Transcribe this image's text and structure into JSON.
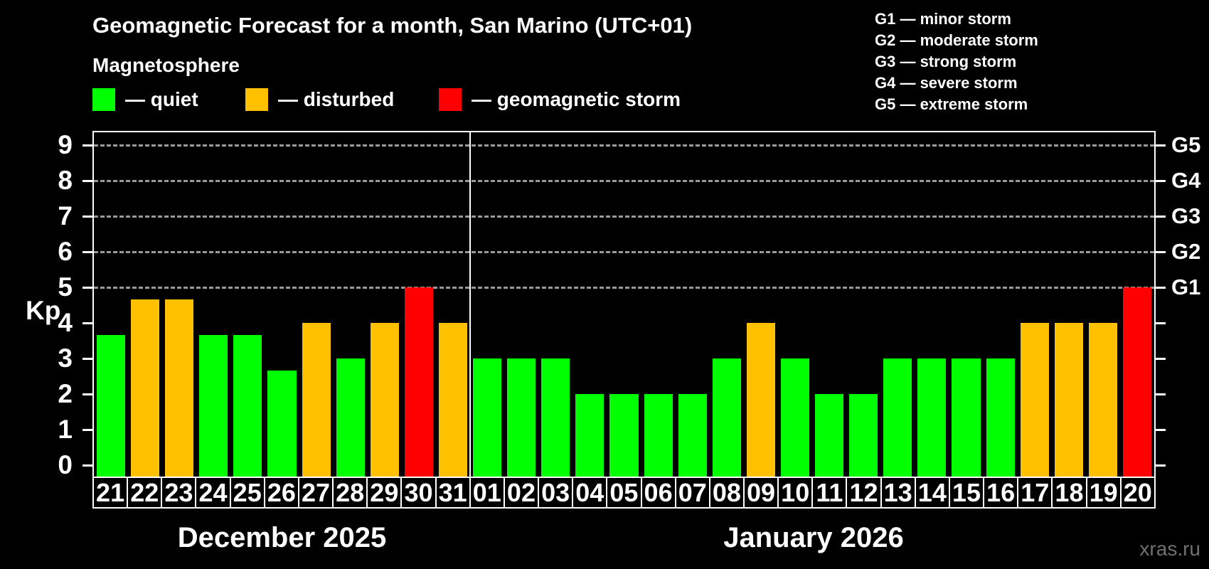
{
  "title": "Geomagnetic Forecast for a month, San Marino (UTC+01)",
  "subtitle": "Magnetosphere",
  "legend": {
    "items": [
      {
        "name": "quiet",
        "label": "— quiet"
      },
      {
        "name": "disturbed",
        "label": "— disturbed"
      },
      {
        "name": "storm",
        "label": "— geomagnetic storm"
      }
    ]
  },
  "storm_scale_legend": [
    "G1 — minor storm",
    "G2 — moderate storm",
    "G3 — strong storm",
    "G4 — severe storm",
    "G5 — extreme storm"
  ],
  "watermark": "xras.ru",
  "colors": {
    "quiet": "#00ff00",
    "disturbed": "#ffc000",
    "storm": "#ff0000",
    "background": "#000000",
    "axis": "#ffffff",
    "grid": "#9a9a9a",
    "watermark": "#707070"
  },
  "chart_data": {
    "type": "bar",
    "title": "Geomagnetic Forecast for a month, San Marino (UTC+01)",
    "ylabel": "Kp",
    "ylim": [
      0,
      9.4
    ],
    "yticks": [
      0,
      1,
      2,
      3,
      4,
      5,
      6,
      7,
      8,
      9
    ],
    "gridlines": [
      5,
      6,
      7,
      8,
      9
    ],
    "grid_style": "horizontal dashed gray at storm levels only",
    "legend_position": "top-left",
    "right_axis_labels": [
      {
        "kp": 5,
        "label": "G1"
      },
      {
        "kp": 6,
        "label": "G2"
      },
      {
        "kp": 7,
        "label": "G3"
      },
      {
        "kp": 8,
        "label": "G4"
      },
      {
        "kp": 9,
        "label": "G5"
      }
    ],
    "months": [
      {
        "label": "December 2025",
        "days": 11
      },
      {
        "label": "January 2026",
        "days": 20
      }
    ],
    "categories": [
      "21",
      "22",
      "23",
      "24",
      "25",
      "26",
      "27",
      "28",
      "29",
      "30",
      "31",
      "01",
      "02",
      "03",
      "04",
      "05",
      "06",
      "07",
      "08",
      "09",
      "10",
      "11",
      "12",
      "13",
      "14",
      "15",
      "16",
      "17",
      "18",
      "19",
      "20"
    ],
    "values": [
      3.67,
      4.67,
      4.67,
      3.67,
      3.67,
      2.67,
      4,
      3,
      4,
      5,
      4,
      3,
      3,
      3,
      2,
      2,
      2,
      2,
      3,
      4,
      3,
      2,
      2,
      3,
      3,
      3,
      3,
      4,
      4,
      4,
      5
    ],
    "status": [
      "quiet",
      "disturbed",
      "disturbed",
      "quiet",
      "quiet",
      "quiet",
      "disturbed",
      "quiet",
      "disturbed",
      "storm",
      "disturbed",
      "quiet",
      "quiet",
      "quiet",
      "quiet",
      "quiet",
      "quiet",
      "quiet",
      "quiet",
      "disturbed",
      "quiet",
      "quiet",
      "quiet",
      "quiet",
      "quiet",
      "quiet",
      "quiet",
      "disturbed",
      "disturbed",
      "disturbed",
      "storm"
    ]
  }
}
